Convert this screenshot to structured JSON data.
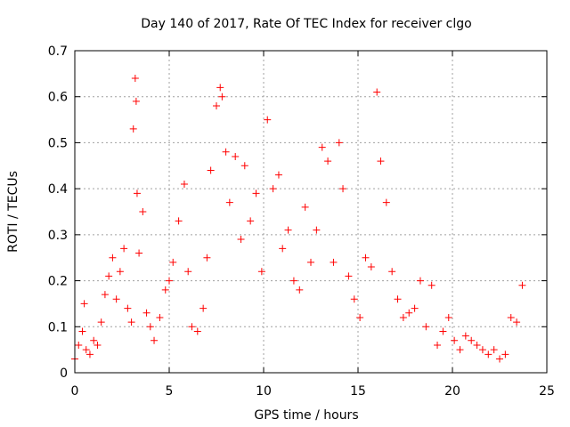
{
  "chart_data": {
    "type": "scatter",
    "title": "Day 140 of 2017, Rate Of TEC Index for receiver clgo",
    "xlabel": "GPS time / hours",
    "ylabel": "ROTI / TECUs",
    "xlim": [
      0,
      25
    ],
    "ylim": [
      0,
      0.7
    ],
    "xticks": [
      "0",
      "5",
      "10",
      "15",
      "20",
      "25"
    ],
    "yticks": [
      "0",
      "0.1",
      "0.2",
      "0.3",
      "0.4",
      "0.5",
      "0.6",
      "0.7"
    ],
    "grid": true,
    "marker": "+",
    "series_color": "#ff0000",
    "series": [
      {
        "x": [
          0.0,
          0.2,
          0.4,
          0.5,
          0.6,
          0.8,
          1.0,
          1.2,
          1.4,
          1.6,
          1.8,
          2.0,
          2.2,
          2.4,
          2.6,
          2.8,
          3.0,
          3.1,
          3.2,
          3.25,
          3.3,
          3.4,
          3.6,
          3.8,
          4.0,
          4.2,
          4.5,
          4.8,
          5.0,
          5.2,
          5.5,
          5.8,
          6.0,
          6.2,
          6.5,
          6.8,
          7.0,
          7.2,
          7.5,
          7.7,
          7.8,
          8.0,
          8.2,
          8.5,
          8.8,
          9.0,
          9.3,
          9.6,
          9.9,
          10.2,
          10.5,
          10.8,
          11.0,
          11.3,
          11.6,
          11.9,
          12.2,
          12.5,
          12.8,
          13.1,
          13.4,
          13.7,
          14.0,
          14.2,
          14.5,
          14.8,
          15.1,
          15.4,
          15.7,
          16.0,
          16.2,
          16.5,
          16.8,
          17.1,
          17.4,
          17.7,
          18.0,
          18.3,
          18.6,
          18.9,
          19.2,
          19.5,
          19.8,
          20.1,
          20.4,
          20.7,
          21.0,
          21.3,
          21.6,
          21.9,
          22.2,
          22.5,
          22.8,
          23.1,
          23.4,
          23.7
        ],
        "y": [
          0.03,
          0.06,
          0.09,
          0.15,
          0.05,
          0.04,
          0.07,
          0.06,
          0.11,
          0.17,
          0.21,
          0.25,
          0.16,
          0.22,
          0.27,
          0.14,
          0.11,
          0.53,
          0.64,
          0.59,
          0.39,
          0.26,
          0.35,
          0.13,
          0.1,
          0.07,
          0.12,
          0.18,
          0.2,
          0.24,
          0.33,
          0.41,
          0.22,
          0.1,
          0.09,
          0.14,
          0.25,
          0.44,
          0.58,
          0.62,
          0.6,
          0.48,
          0.37,
          0.47,
          0.29,
          0.45,
          0.33,
          0.39,
          0.22,
          0.55,
          0.4,
          0.43,
          0.27,
          0.31,
          0.2,
          0.18,
          0.36,
          0.24,
          0.31,
          0.49,
          0.46,
          0.24,
          0.5,
          0.4,
          0.21,
          0.16,
          0.12,
          0.25,
          0.23,
          0.61,
          0.46,
          0.37,
          0.22,
          0.16,
          0.12,
          0.13,
          0.14,
          0.2,
          0.1,
          0.19,
          0.06,
          0.09,
          0.12,
          0.07,
          0.05,
          0.08,
          0.07,
          0.06,
          0.05,
          0.04,
          0.05,
          0.03,
          0.04,
          0.12,
          0.11,
          0.19
        ]
      }
    ]
  }
}
